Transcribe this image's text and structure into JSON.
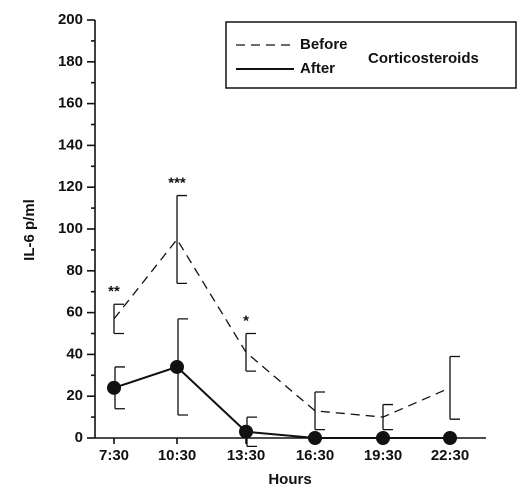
{
  "chart_data": {
    "type": "line",
    "x_label": "Hours",
    "y_label": "IL-6 p/ml",
    "categories": [
      "7:30",
      "10:30",
      "13:30",
      "16:30",
      "19:30",
      "22:30"
    ],
    "ylim": [
      0,
      200
    ],
    "yticks": [
      0,
      20,
      40,
      60,
      80,
      100,
      120,
      140,
      160,
      180,
      200
    ],
    "legend_title": "Corticosteroids",
    "legend_position": "upper right",
    "series": [
      {
        "name": "Before",
        "color": "#111111",
        "dashed": true,
        "marker": false,
        "values": [
          57,
          95,
          41,
          13,
          10,
          24
        ],
        "errors": [
          7,
          21,
          9,
          9,
          6,
          15
        ],
        "annotations": [
          "**",
          "***",
          "*",
          null,
          null,
          null
        ]
      },
      {
        "name": "After",
        "color": "#111111",
        "dashed": false,
        "marker": true,
        "values": [
          24,
          34,
          3,
          0,
          0,
          0
        ],
        "errors": [
          10,
          23,
          7,
          0,
          0,
          0
        ]
      }
    ]
  }
}
